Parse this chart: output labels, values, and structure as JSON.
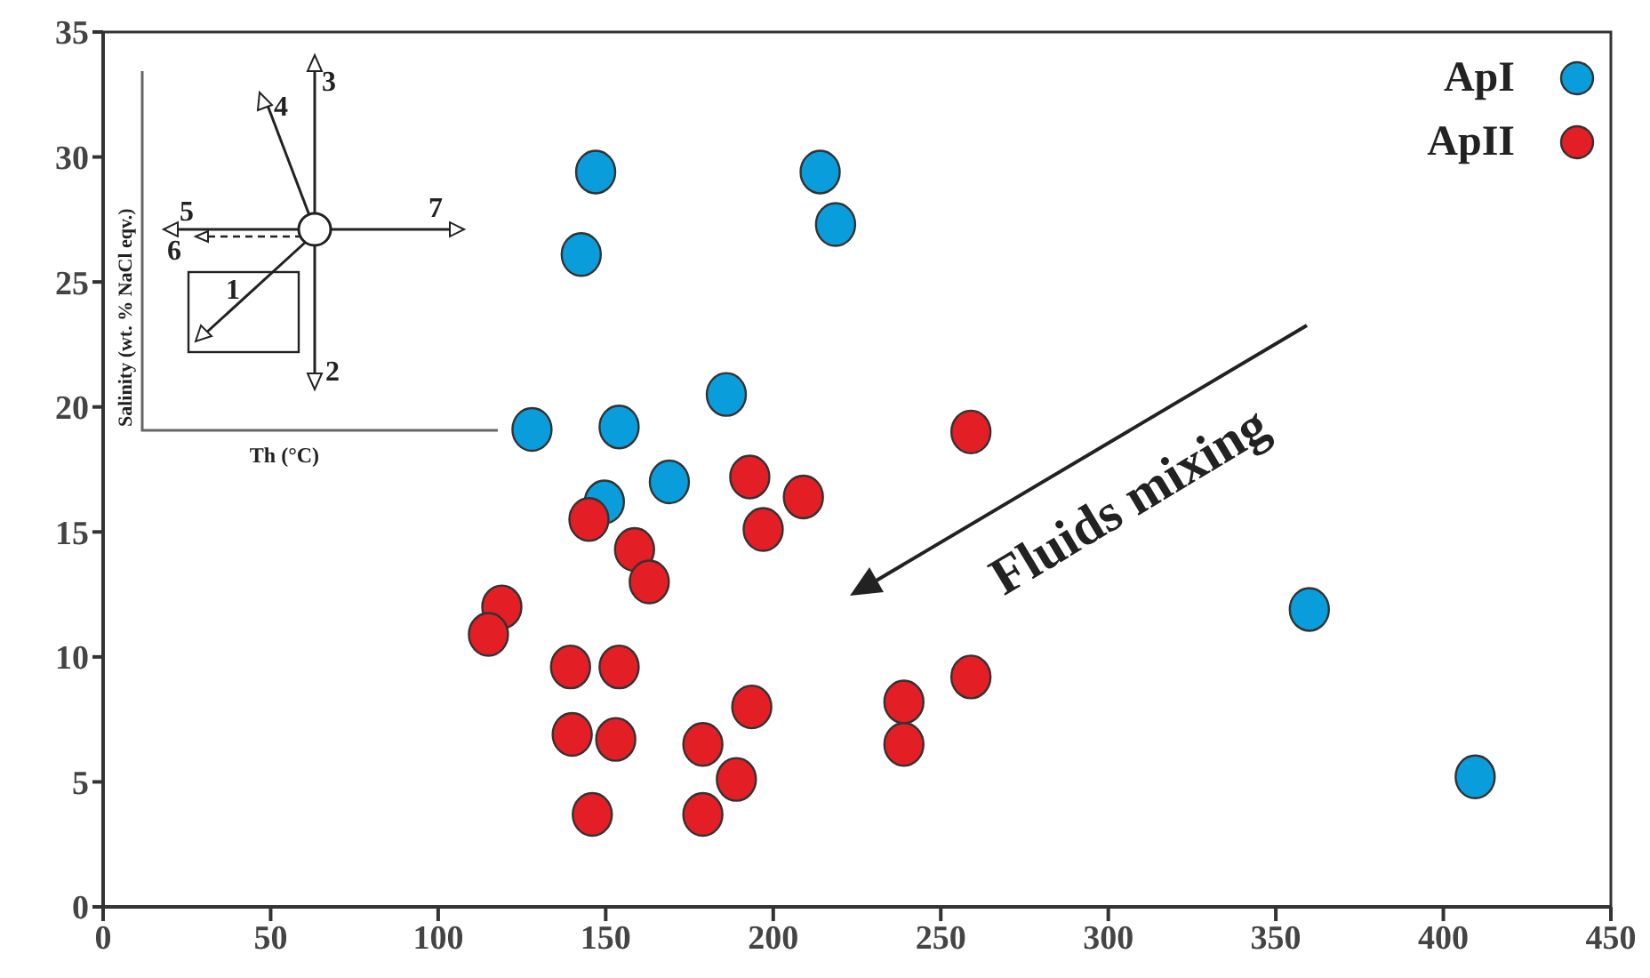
{
  "chart_data": {
    "type": "scatter",
    "xlim": [
      0,
      450
    ],
    "xticks": [
      0,
      50,
      100,
      150,
      200,
      250,
      300,
      350,
      400,
      450
    ],
    "ylim": [
      0,
      35
    ],
    "yticks": [
      0,
      5,
      10,
      15,
      20,
      25,
      30,
      35
    ],
    "grid": false,
    "legend": "top right",
    "marker": "circle",
    "annotations": [
      "Fluids mixing",
      "Salinity (wt. % NaCl eqv.)",
      "Th (°C)",
      "1",
      "2",
      "3",
      "4",
      "5",
      "6",
      "7"
    ],
    "series": [
      {
        "name": "ApI",
        "color": "#0a9ddb",
        "x": [
          147,
          214,
          218.6,
          142.7,
          186,
          128,
          154,
          169,
          149.6,
          360,
          409.5
        ],
        "values": [
          29.4,
          29.4,
          27.3,
          26.1,
          20.5,
          19.1,
          19.2,
          17.0,
          16.2,
          11.9,
          5.2
        ]
      },
      {
        "name": "ApII",
        "color": "#e31e24",
        "x": [
          259,
          193,
          209,
          197,
          145,
          158.6,
          163,
          119,
          115,
          139.5,
          154,
          140,
          153,
          179,
          193.6,
          189,
          146,
          179,
          239,
          239,
          259
        ],
        "values": [
          19.0,
          17.2,
          16.4,
          15.1,
          15.5,
          14.3,
          13.0,
          12.0,
          10.9,
          9.6,
          9.6,
          6.9,
          6.7,
          6.5,
          8.0,
          5.1,
          3.7,
          3.7,
          8.2,
          6.5,
          9.2
        ]
      }
    ]
  }
}
